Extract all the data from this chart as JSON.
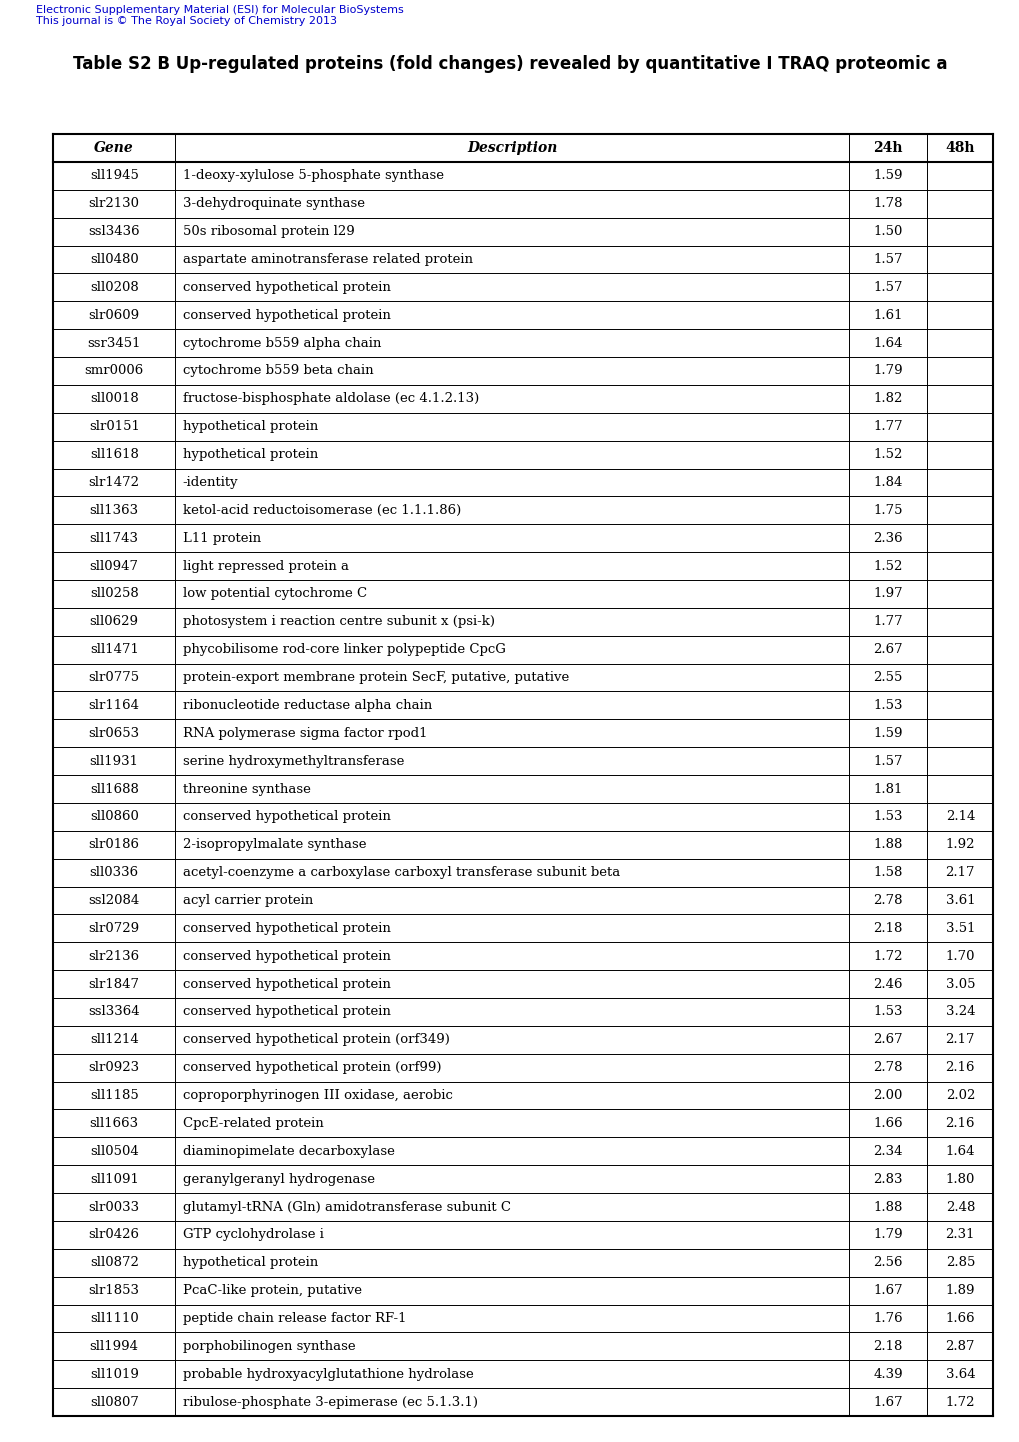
{
  "header_text": "Table S2 B Up-regulated proteins (fold changes) revealed by quantitative I TRAQ proteomic a",
  "watermark_line1": "Electronic Supplementary Material (ESI) for Molecular BioSystems",
  "watermark_line2": "This journal is © The Royal Society of Chemistry 2013",
  "col_headers": [
    "Gene",
    "Description",
    "24h",
    "48h"
  ],
  "rows": [
    [
      "sll1945",
      "1-deoxy-xylulose 5-phosphate synthase",
      "1.59",
      ""
    ],
    [
      "slr2130",
      "3-dehydroquinate synthase",
      "1.78",
      ""
    ],
    [
      "ssl3436",
      "50s ribosomal protein l29",
      "1.50",
      ""
    ],
    [
      "sll0480",
      "aspartate aminotransferase related protein",
      "1.57",
      ""
    ],
    [
      "sll0208",
      "conserved hypothetical protein",
      "1.57",
      ""
    ],
    [
      "slr0609",
      "conserved hypothetical protein",
      "1.61",
      ""
    ],
    [
      "ssr3451",
      "cytochrome b559 alpha chain",
      "1.64",
      ""
    ],
    [
      "smr0006",
      "cytochrome b559 beta chain",
      "1.79",
      ""
    ],
    [
      "sll0018",
      "fructose-bisphosphate aldolase (ec 4.1.2.13)",
      "1.82",
      ""
    ],
    [
      "slr0151",
      "hypothetical protein",
      "1.77",
      ""
    ],
    [
      "sll1618",
      "hypothetical protein",
      "1.52",
      ""
    ],
    [
      "slr1472",
      "-identity",
      "1.84",
      ""
    ],
    [
      "sll1363",
      "ketol-acid reductoisomerase (ec 1.1.1.86)",
      "1.75",
      ""
    ],
    [
      "sll1743",
      "L11 protein",
      "2.36",
      ""
    ],
    [
      "sll0947",
      "light repressed protein a",
      "1.52",
      ""
    ],
    [
      "sll0258",
      "low potential cytochrome C",
      "1.97",
      ""
    ],
    [
      "sll0629",
      "photosystem i reaction centre subunit x (psi-k)",
      "1.77",
      ""
    ],
    [
      "sll1471",
      "phycobilisome rod-core linker polypeptide CpcG",
      "2.67",
      ""
    ],
    [
      "slr0775",
      "protein-export membrane protein SecF, putative, putative",
      "2.55",
      ""
    ],
    [
      "slr1164",
      "ribonucleotide reductase alpha chain",
      "1.53",
      ""
    ],
    [
      "slr0653",
      "RNA polymerase sigma factor rpod1",
      "1.59",
      ""
    ],
    [
      "sll1931",
      "serine hydroxymethyltransferase",
      "1.57",
      ""
    ],
    [
      "sll1688",
      "threonine synthase",
      "1.81",
      ""
    ],
    [
      "sll0860",
      "conserved hypothetical protein",
      "1.53",
      "2.14"
    ],
    [
      "slr0186",
      "2-isopropylmalate synthase",
      "1.88",
      "1.92"
    ],
    [
      "sll0336",
      "acetyl-coenzyme a carboxylase carboxyl transferase subunit beta",
      "1.58",
      "2.17"
    ],
    [
      "ssl2084",
      "acyl carrier protein",
      "2.78",
      "3.61"
    ],
    [
      "slr0729",
      "conserved hypothetical protein",
      "2.18",
      "3.51"
    ],
    [
      "slr2136",
      "conserved hypothetical protein",
      "1.72",
      "1.70"
    ],
    [
      "slr1847",
      "conserved hypothetical protein",
      "2.46",
      "3.05"
    ],
    [
      "ssl3364",
      "conserved hypothetical protein",
      "1.53",
      "3.24"
    ],
    [
      "sll1214",
      "conserved hypothetical protein (orf349)",
      "2.67",
      "2.17"
    ],
    [
      "slr0923",
      "conserved hypothetical protein (orf99)",
      "2.78",
      "2.16"
    ],
    [
      "sll1185",
      "coproporphyrinogen III oxidase, aerobic",
      "2.00",
      "2.02"
    ],
    [
      "sll1663",
      "CpcE-related protein",
      "1.66",
      "2.16"
    ],
    [
      "sll0504",
      "diaminopimelate decarboxylase",
      "2.34",
      "1.64"
    ],
    [
      "sll1091",
      "geranylgeranyl hydrogenase",
      "2.83",
      "1.80"
    ],
    [
      "slr0033",
      "glutamyl-tRNA (Gln) amidotransferase subunit C",
      "1.88",
      "2.48"
    ],
    [
      "slr0426",
      "GTP cyclohydrolase i",
      "1.79",
      "2.31"
    ],
    [
      "sll0872",
      "hypothetical protein",
      "2.56",
      "2.85"
    ],
    [
      "slr1853",
      "PcaC-like protein, putative",
      "1.67",
      "1.89"
    ],
    [
      "sll1110",
      "peptide chain release factor RF-1",
      "1.76",
      "1.66"
    ],
    [
      "sll1994",
      "porphobilinogen synthase",
      "2.18",
      "2.87"
    ],
    [
      "sll1019",
      "probable hydroxyacylglutathione hydrolase",
      "4.39",
      "3.64"
    ],
    [
      "sll0807",
      "ribulose-phosphate 3-epimerase (ec 5.1.3.1)",
      "1.67",
      "1.72"
    ]
  ],
  "watermark_color": "#0000cc",
  "title_fontsize": 12,
  "watermark_fontsize": 8,
  "header_fontsize": 10,
  "row_fontsize": 9.5,
  "fig_width": 10.2,
  "fig_height": 14.42,
  "dpi": 100
}
